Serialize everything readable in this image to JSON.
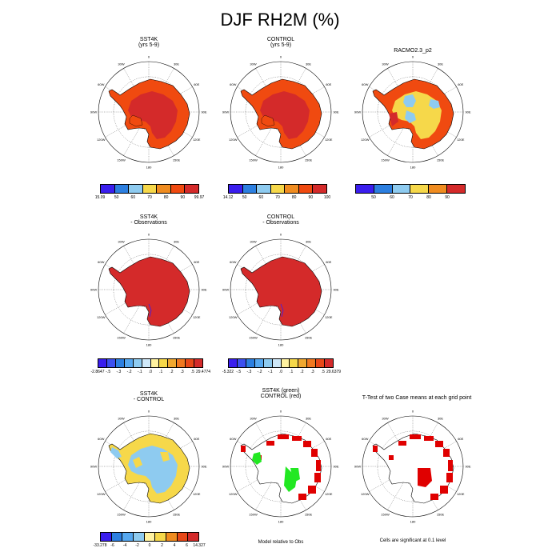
{
  "title": "DJF RH2M (%)",
  "panels": [
    {
      "id": "p1",
      "title": [
        "SST4K",
        "(yrs 5-9)"
      ],
      "style": "model"
    },
    {
      "id": "p2",
      "title": [
        "CONTROL",
        "(yrs 5-9)"
      ],
      "style": "model"
    },
    {
      "id": "p3",
      "title": [
        "RACMO2.3_p2"
      ],
      "style": "obs"
    },
    {
      "id": "p4",
      "title": [
        "SST4K",
        "- Observations"
      ],
      "style": "diff"
    },
    {
      "id": "p5",
      "title": [
        "CONTROL",
        "- Observations"
      ],
      "style": "diff"
    },
    {
      "id": "p6",
      "title": [
        "SST4K",
        "- CONTROL"
      ],
      "style": "delta"
    },
    {
      "id": "p7",
      "title": [
        "SST4K (green)",
        "CONTROL (red)"
      ],
      "style": "redgreen"
    },
    {
      "id": "p8",
      "title": [
        "T-Test of two Case means at each grid point"
      ],
      "style": "ttest"
    }
  ],
  "lon_labels": [
    "0",
    "30E",
    "60E",
    "90E",
    "120E",
    "150E",
    "180",
    "150W",
    "120W",
    "90W",
    "60W",
    "30W"
  ],
  "colorbars": [
    {
      "id": "cb1",
      "colors": [
        "#3a1eee",
        "#2c7fe0",
        "#8ecbf0",
        "#f6d84a",
        "#f08c20",
        "#f04a10",
        "#d42a2a"
      ],
      "labels": [
        "15.09",
        "50",
        "60",
        "70",
        "80",
        "90",
        "99.97"
      ]
    },
    {
      "id": "cb2",
      "colors": [
        "#3a1eee",
        "#2c7fe0",
        "#8ecbf0",
        "#f6d84a",
        "#f08c20",
        "#f04a10",
        "#d42a2a"
      ],
      "labels": [
        "14.12",
        "50",
        "60",
        "70",
        "80",
        "90",
        "100"
      ]
    },
    {
      "id": "cb3",
      "colors": [
        "#3a1eee",
        "#2c7fe0",
        "#8ecbf0",
        "#f6d84a",
        "#f08c20",
        "#d42a2a"
      ],
      "labels": [
        "",
        "50",
        "60",
        "70",
        "80",
        "90",
        ""
      ]
    },
    {
      "id": "cb4",
      "colors": [
        "#3a1eee",
        "#3c50f0",
        "#2c7fe0",
        "#56a8f0",
        "#8ecbf0",
        "#cfe8f8",
        "#fff2a0",
        "#f6d84a",
        "#f0a830",
        "#f07820",
        "#e84818",
        "#d42a2a"
      ],
      "labels": [
        "-2.8647",
        "-.5",
        "-.3",
        "-.2",
        "-.1",
        ".0",
        ".1",
        ".2",
        ".3",
        ".5",
        "29.4774"
      ]
    },
    {
      "id": "cb5",
      "colors": [
        "#3a1eee",
        "#3c50f0",
        "#2c7fe0",
        "#56a8f0",
        "#8ecbf0",
        "#cfe8f8",
        "#fff2a0",
        "#f6d84a",
        "#f0a830",
        "#f07820",
        "#e84818",
        "#d42a2a"
      ],
      "labels": [
        "-5.322",
        "-.5",
        "-.3",
        "-.2",
        "-.1",
        ".0",
        ".1",
        ".2",
        ".3",
        ".5",
        "29.6379"
      ]
    },
    {
      "id": "cb6",
      "colors": [
        "#3a1eee",
        "#2c7fe0",
        "#56a8f0",
        "#8ecbf0",
        "#fff2a0",
        "#f6d84a",
        "#f08c20",
        "#e84818",
        "#d42a2a"
      ],
      "labels": [
        "-33.278",
        "-6",
        "-4",
        "-2",
        "0",
        "2",
        "4",
        "6",
        "14.327"
      ]
    }
  ],
  "footnotes": {
    "model_relative": "Model relative to Obs",
    "significance": "Cells are significant at 0.1 level"
  },
  "colors": {
    "deep_red": "#d42a2a",
    "orange_red": "#f04a10",
    "yellow": "#f6d84a",
    "light_blue": "#8ecbf0",
    "green": "#22e822",
    "blue": "#3a1eee"
  }
}
